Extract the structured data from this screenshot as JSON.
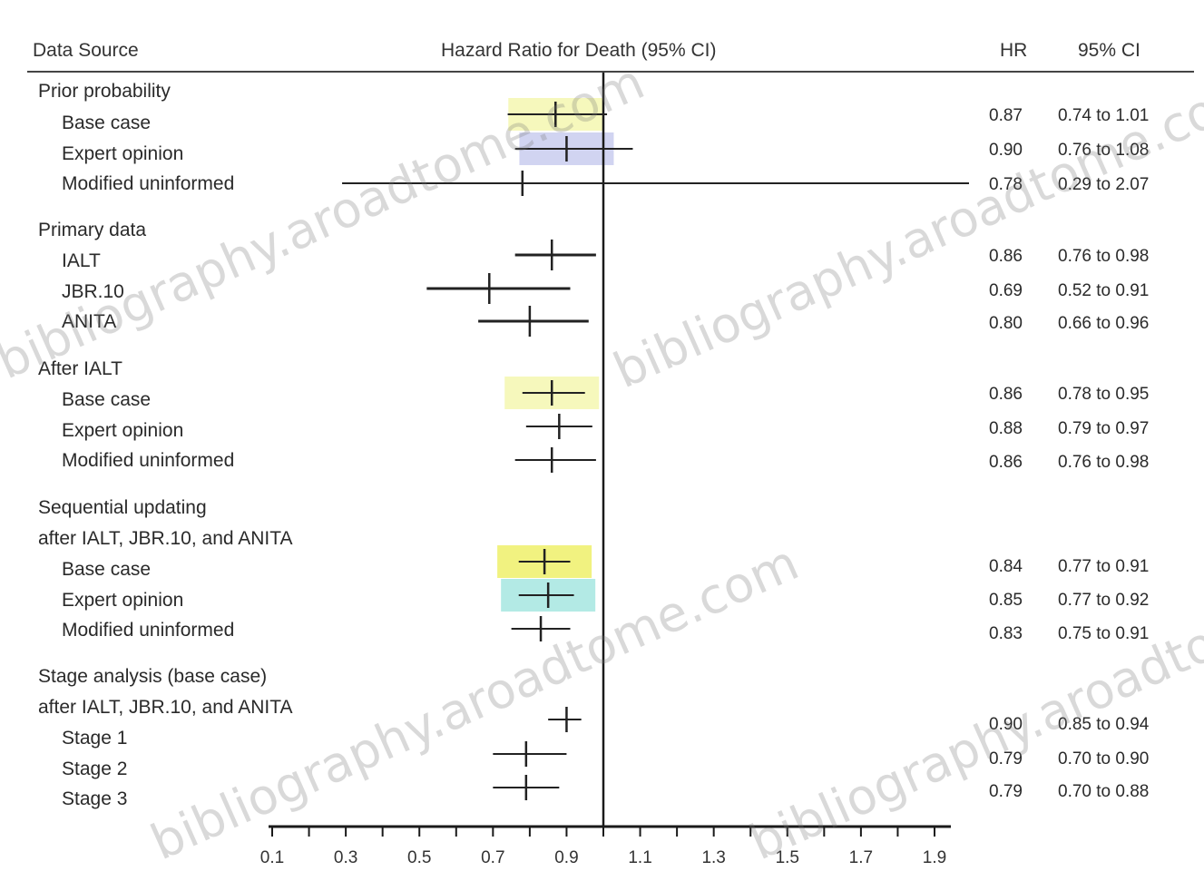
{
  "chart_data": {
    "type": "forest",
    "headers": {
      "source": "Data Source",
      "plot": "Hazard Ratio for Death (95% CI)",
      "hr": "HR",
      "ci": "95% CI"
    },
    "xlim": [
      0.1,
      1.9
    ],
    "x_ticks": [
      "0.1",
      "0.3",
      "0.5",
      "0.7",
      "0.9",
      "1.1",
      "1.3",
      "1.5",
      "1.7",
      "1.9"
    ],
    "reference_line": 1.0,
    "groups": [
      {
        "label": "Prior probability",
        "rows": [
          {
            "label": "Base case",
            "hr": 0.87,
            "lo": 0.74,
            "hi": 1.01,
            "hr_text": "0.87",
            "ci_text": "0.74 to 1.01",
            "highlight": "#f4f7b0"
          },
          {
            "label": "Expert opinion",
            "hr": 0.9,
            "lo": 0.76,
            "hi": 1.08,
            "hr_text": "0.90",
            "ci_text": "0.76 to 1.08",
            "highlight": "#c9ccef"
          },
          {
            "label": "Modified uninformed",
            "hr": 0.78,
            "lo": 0.29,
            "hi": 2.07,
            "hr_text": "0.78",
            "ci_text": "0.29 to 2.07",
            "highlight": ""
          }
        ]
      },
      {
        "label": "Primary data",
        "rows": [
          {
            "label": "IALT",
            "hr": 0.86,
            "lo": 0.76,
            "hi": 0.98,
            "hr_text": "0.86",
            "ci_text": "0.76 to 0.98",
            "highlight": ""
          },
          {
            "label": "JBR.10",
            "hr": 0.69,
            "lo": 0.52,
            "hi": 0.91,
            "hr_text": "0.69",
            "ci_text": "0.52 to 0.91",
            "highlight": ""
          },
          {
            "label": "ANITA",
            "hr": 0.8,
            "lo": 0.66,
            "hi": 0.96,
            "hr_text": "0.80",
            "ci_text": "0.66 to 0.96",
            "highlight": ""
          }
        ]
      },
      {
        "label": "After IALT",
        "rows": [
          {
            "label": "Base case",
            "hr": 0.86,
            "lo": 0.78,
            "hi": 0.95,
            "hr_text": "0.86",
            "ci_text": "0.78 to 0.95",
            "highlight": "#f4f7b0"
          },
          {
            "label": "Expert opinion",
            "hr": 0.88,
            "lo": 0.79,
            "hi": 0.97,
            "hr_text": "0.88",
            "ci_text": "0.79 to 0.97",
            "highlight": ""
          },
          {
            "label": "Modified uninformed",
            "hr": 0.86,
            "lo": 0.76,
            "hi": 0.98,
            "hr_text": "0.86",
            "ci_text": "0.76 to 0.98",
            "highlight": ""
          }
        ]
      },
      {
        "label": "Sequential updating",
        "label2": "after IALT, JBR.10, and ANITA",
        "rows": [
          {
            "label": "Base case",
            "hr": 0.84,
            "lo": 0.77,
            "hi": 0.91,
            "hr_text": "0.84",
            "ci_text": "0.77 to 0.91",
            "highlight": "#eef06a"
          },
          {
            "label": "Expert opinion",
            "hr": 0.85,
            "lo": 0.77,
            "hi": 0.92,
            "hr_text": "0.85",
            "ci_text": "0.77 to 0.92",
            "highlight": "#a6e6e0"
          },
          {
            "label": "Modified uninformed",
            "hr": 0.83,
            "lo": 0.75,
            "hi": 0.91,
            "hr_text": "0.83",
            "ci_text": "0.75 to 0.91",
            "highlight": ""
          }
        ]
      },
      {
        "label": "Stage analysis (base case)",
        "label2": "after IALT, JBR.10, and ANITA",
        "rows": [
          {
            "label": "Stage 1",
            "hr": 0.9,
            "lo": 0.85,
            "hi": 0.94,
            "hr_text": "0.90",
            "ci_text": "0.85 to 0.94",
            "highlight": ""
          },
          {
            "label": "Stage 2",
            "hr": 0.79,
            "lo": 0.7,
            "hi": 0.9,
            "hr_text": "0.79",
            "ci_text": "0.70 to 0.90",
            "highlight": ""
          },
          {
            "label": "Stage 3",
            "hr": 0.79,
            "lo": 0.7,
            "hi": 0.88,
            "hr_text": "0.79",
            "ci_text": "0.70 to 0.88",
            "highlight": ""
          }
        ]
      }
    ]
  },
  "watermark": "bibliography.aroadtome.com"
}
